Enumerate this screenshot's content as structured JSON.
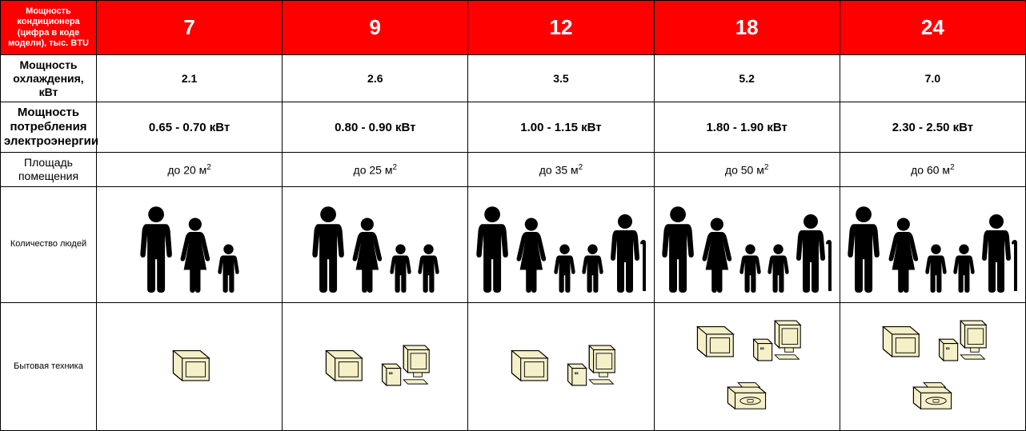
{
  "colors": {
    "header_bg": "#ff0000",
    "header_text": "#ffffff",
    "body_text": "#000000",
    "border": "#000000",
    "person_fill": "#000000",
    "appliance_fill": "#f5f0c8",
    "appliance_stroke": "#000000"
  },
  "labels": {
    "btu": "Мощность кондиционера (цифра в коде модели), тыс. BTU",
    "cooling": "Мощность охлаждения, кВт",
    "energy": "Мощность потребления электроэнергии",
    "area": "Площадь помещения",
    "people": "Количество людей",
    "appliances": "Бытовая техника"
  },
  "columns": [
    {
      "btu": "7",
      "cooling": "2.1",
      "energy": "0.65 - 0.70 кВт",
      "area_prefix": "до 20 м",
      "area_sup": "2",
      "people": [
        "man",
        "woman",
        "child"
      ],
      "appliances": [
        "tv"
      ]
    },
    {
      "btu": "9",
      "cooling": "2.6",
      "energy": "0.80 - 0.90 кВт",
      "area_prefix": "до 25 м",
      "area_sup": "2",
      "people": [
        "man",
        "woman",
        "child",
        "child"
      ],
      "appliances": [
        "tv",
        "computer"
      ]
    },
    {
      "btu": "12",
      "cooling": "3.5",
      "energy": "1.00 - 1.15 кВт",
      "area_prefix": "до 35 м",
      "area_sup": "2",
      "people": [
        "man",
        "woman",
        "child",
        "child",
        "elderly"
      ],
      "appliances": [
        "tv",
        "computer"
      ]
    },
    {
      "btu": "18",
      "cooling": "5.2",
      "energy": "1.80 - 1.90 кВт",
      "area_prefix": "до 50 м",
      "area_sup": "2",
      "people": [
        "man",
        "woman",
        "child",
        "child",
        "elderly"
      ],
      "appliances": [
        "tv",
        "computer",
        "printer"
      ]
    },
    {
      "btu": "24",
      "cooling": "7.0",
      "energy": "2.30 - 2.50 кВт",
      "area_prefix": "до 60 м",
      "area_sup": "2",
      "people": [
        "man",
        "woman",
        "child",
        "child",
        "elderly"
      ],
      "appliances": [
        "tv",
        "computer",
        "printer"
      ]
    }
  ],
  "icon_sizes": {
    "man": 110,
    "woman": 95,
    "child": 62,
    "elderly": 100,
    "tv": 56,
    "computer": 64,
    "printer": 58
  }
}
